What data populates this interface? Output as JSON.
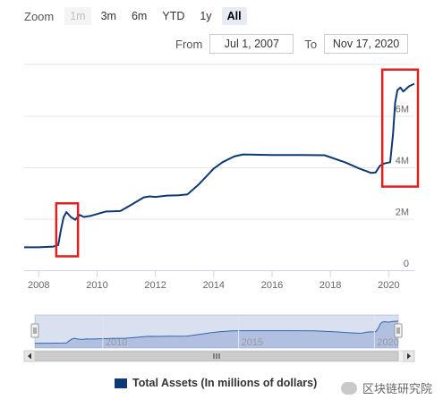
{
  "range_selector": {
    "zoom_label": "Zoom",
    "buttons": [
      {
        "label": "1m",
        "state": "disabled"
      },
      {
        "label": "3m",
        "state": "normal"
      },
      {
        "label": "6m",
        "state": "normal"
      },
      {
        "label": "YTD",
        "state": "normal"
      },
      {
        "label": "1y",
        "state": "normal"
      },
      {
        "label": "All",
        "state": "active"
      }
    ],
    "from_label": "From",
    "from_value": "Jul 1, 2007",
    "to_label": "To",
    "to_value": "Nov 17, 2020"
  },
  "chart_data": {
    "type": "line",
    "title": "",
    "xlabel": "",
    "ylabel": "",
    "x_ticks": [
      "2008",
      "2010",
      "2012",
      "2014",
      "2016",
      "2018",
      "2020"
    ],
    "y_ticks": [
      "0",
      "2M",
      "4M",
      "6M"
    ],
    "xlim": [
      2007.5,
      2020.88
    ],
    "ylim": [
      0,
      8000000
    ],
    "grid": true,
    "legend_position": "bottom",
    "series": [
      {
        "name": "Total Assets (In millions of dollars)",
        "color": "#0d3a75",
        "x": [
          2007.5,
          2008.0,
          2008.5,
          2008.67,
          2008.75,
          2008.85,
          2008.95,
          2009.1,
          2009.25,
          2009.4,
          2009.55,
          2009.8,
          2010.3,
          2010.8,
          2011.2,
          2011.6,
          2011.8,
          2012.0,
          2012.4,
          2012.8,
          2013.1,
          2013.5,
          2014.0,
          2014.3,
          2014.7,
          2015.0,
          2016.0,
          2017.0,
          2017.8,
          2018.5,
          2019.0,
          2019.4,
          2019.55,
          2019.7,
          2019.85,
          2020.05,
          2020.15,
          2020.22,
          2020.3,
          2020.4,
          2020.5,
          2020.7,
          2020.88
        ],
        "values": [
          890000,
          890000,
          920000,
          980000,
          1500000,
          2050000,
          2260000,
          2070000,
          1960000,
          2150000,
          2070000,
          2120000,
          2280000,
          2300000,
          2560000,
          2830000,
          2870000,
          2850000,
          2900000,
          2910000,
          2950000,
          3350000,
          3950000,
          4200000,
          4420000,
          4500000,
          4480000,
          4480000,
          4470000,
          4200000,
          3950000,
          3780000,
          3800000,
          4060000,
          4150000,
          4200000,
          5300000,
          6500000,
          7000000,
          7100000,
          6950000,
          7150000,
          7250000
        ]
      }
    ],
    "navigator": {
      "x_ticks": [
        "2010",
        "2015",
        "2020"
      ]
    }
  },
  "annotations": [
    {
      "label": "crisis-2008-highlight",
      "color": "#e02020"
    },
    {
      "label": "covid-2020-highlight",
      "color": "#e02020"
    }
  ],
  "watermark": {
    "text": "区块链研究院"
  }
}
